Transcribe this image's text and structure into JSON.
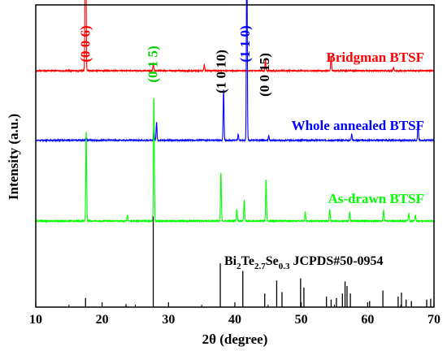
{
  "chart_data": {
    "type": "line",
    "xlabel": "2θ (degree)",
    "ylabel": "Intensity (a.u.)",
    "xlim": [
      10,
      70
    ],
    "xticks": [
      10,
      20,
      30,
      40,
      50,
      60,
      70
    ],
    "grid": false,
    "yscale": "arbitrary, vertically offset traces",
    "series": [
      {
        "name": "Bridgman BTSF",
        "color": "#ff0000",
        "offset": 0.77,
        "baseline": 0.012,
        "peaks": [
          [
            17.5,
            1.0
          ],
          [
            27.7,
            0.025
          ],
          [
            35.4,
            0.02
          ],
          [
            44.6,
            0.035
          ],
          [
            54.5,
            0.05
          ],
          [
            63.9,
            0.01
          ]
        ]
      },
      {
        "name": "Whole annealed BTSF",
        "color": "#0000ff",
        "offset": 0.54,
        "baseline": 0.012,
        "peaks": [
          [
            17.6,
            0.01
          ],
          [
            27.8,
            0.05
          ],
          [
            28.2,
            0.06
          ],
          [
            38.3,
            0.17
          ],
          [
            40.5,
            0.02
          ],
          [
            41.8,
            0.7
          ],
          [
            45.1,
            0.015
          ],
          [
            57.6,
            0.02
          ],
          [
            67.6,
            0.06
          ]
        ]
      },
      {
        "name": "As-drawn BTSF",
        "color": "#00ff00",
        "offset": 0.27,
        "baseline": 0.015,
        "peaks": [
          [
            17.6,
            0.3
          ],
          [
            23.8,
            0.02
          ],
          [
            27.8,
            0.41
          ],
          [
            37.9,
            0.16
          ],
          [
            40.3,
            0.04
          ],
          [
            41.4,
            0.07
          ],
          [
            44.7,
            0.14
          ],
          [
            50.6,
            0.03
          ],
          [
            54.3,
            0.04
          ],
          [
            57.3,
            0.03
          ],
          [
            62.4,
            0.035
          ],
          [
            66.2,
            0.025
          ],
          [
            67.2,
            0.02
          ]
        ]
      },
      {
        "name": "Bi2Te2.7Se0.3 JCPDS#50-0954",
        "color": "#000000",
        "type": "stick",
        "offset": 0.0,
        "peaks": [
          [
            17.5,
            0.03
          ],
          [
            23.6,
            0.01
          ],
          [
            27.7,
            0.3
          ],
          [
            37.8,
            0.145
          ],
          [
            41.2,
            0.12
          ],
          [
            44.5,
            0.045
          ],
          [
            46.3,
            0.088
          ],
          [
            47.1,
            0.05
          ],
          [
            49.9,
            0.095
          ],
          [
            50.4,
            0.065
          ],
          [
            53.8,
            0.035
          ],
          [
            54.5,
            0.025
          ],
          [
            55.3,
            0.03
          ],
          [
            56.2,
            0.045
          ],
          [
            56.6,
            0.085
          ],
          [
            56.9,
            0.07
          ],
          [
            57.4,
            0.045
          ],
          [
            60.3,
            0.02
          ],
          [
            62.3,
            0.055
          ],
          [
            64.6,
            0.035
          ],
          [
            65.1,
            0.048
          ],
          [
            65.8,
            0.025
          ],
          [
            66.6,
            0.02
          ],
          [
            68.9,
            0.025
          ],
          [
            69.5,
            0.028
          ]
        ]
      }
    ],
    "annotations": [
      {
        "text": "(0 0 6)",
        "x": 17.5,
        "color": "#ff0000"
      },
      {
        "text": "(0 1 5)",
        "x": 27.7,
        "color": "#00cc00"
      },
      {
        "text": "(1 0 10)",
        "x": 38.0,
        "color": "#000000"
      },
      {
        "text": "(1 1 0)",
        "x": 41.6,
        "color": "#0000ff"
      },
      {
        "text": "(0 0 15)",
        "x": 44.5,
        "color": "#000000"
      }
    ],
    "reference_label": {
      "base": "Bi",
      "sub1": "2",
      "mid1": "Te",
      "sub2": "2.7",
      "mid2": "Se",
      "sub3": "0.3",
      "tail": " JCPDS#50-0954"
    }
  }
}
